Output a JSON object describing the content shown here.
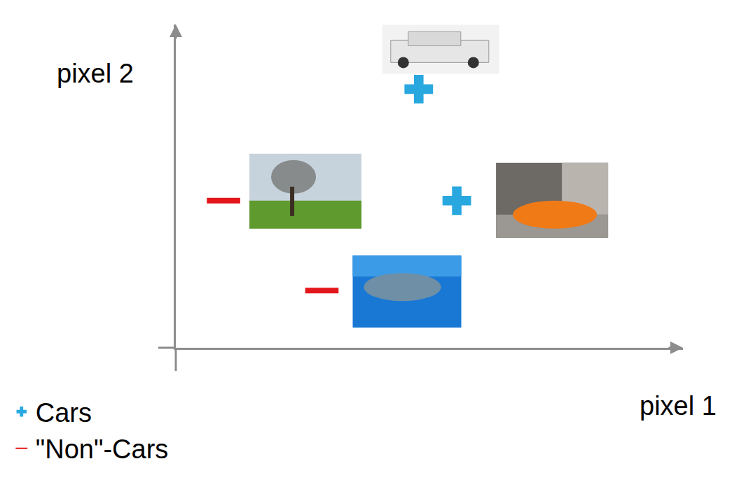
{
  "chart_data": {
    "type": "scatter",
    "xlabel": "pixel 1",
    "ylabel": "pixel 2",
    "xlim": [
      0,
      10
    ],
    "ylim": [
      0,
      10
    ],
    "tick_labels": false,
    "grid": false,
    "legend": "lower left",
    "series": [
      {
        "name": "Cars",
        "color": "#29a8e0",
        "marker": "plus",
        "x": [
          4.79,
          5.54
        ],
        "y": [
          8.0,
          4.55
        ]
      },
      {
        "name": "\"Non\"-Cars",
        "color": "#e3161b",
        "marker": "minus",
        "x": [
          0.94,
          2.88
        ],
        "y": [
          4.55,
          1.77
        ]
      }
    ]
  }
}
